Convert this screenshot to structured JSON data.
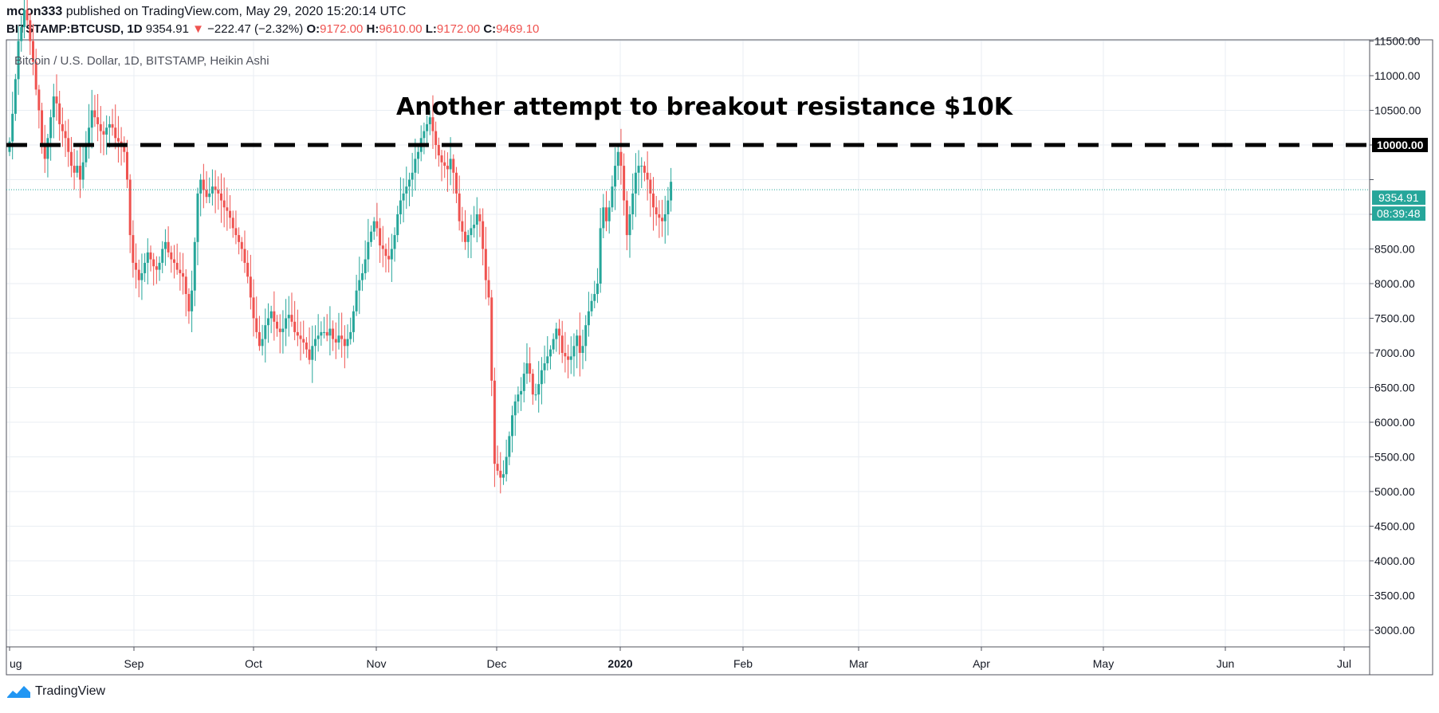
{
  "header": {
    "publisher": "moon333",
    "published_text": "published on TradingView.com, May 29, 2020 15:20:14 UTC",
    "symbol": "BITSTAMP:BTCUSD, 1D",
    "last": "9354.91",
    "change_arrow": "▼",
    "change": "−222.47 (−2.32%)",
    "o_label": "O:",
    "o": "9172.00",
    "h_label": "H:",
    "h": "9610.00",
    "l_label": "L:",
    "l": "9172.00",
    "c_label": "C:",
    "c": "9469.10"
  },
  "legend_text": "Bitcoin / U.S. Dollar, 1D, BITSTAMP, Heikin Ashi",
  "annotation": "Another attempt to breakout resistance $10K",
  "price_label": "9354.91",
  "countdown_label": "08:39:48",
  "resistance_label": "10000.00",
  "footer_brand": "TradingView",
  "colors": {
    "up": "#26a69a",
    "down": "#ef5350",
    "grid": "#e9eef3",
    "text": "#131722"
  },
  "chart_data": {
    "type": "candlestick",
    "style": "Heikin Ashi",
    "title": "Bitcoin / U.S. Dollar, 1D, BITSTAMP, Heikin Ashi",
    "y_ticks": [
      3000,
      3500,
      4000,
      4500,
      5000,
      5500,
      6000,
      6500,
      7000,
      7500,
      8000,
      8500,
      9000,
      9500,
      10000,
      10500,
      11000,
      11500
    ],
    "ylim": [
      2800,
      11850
    ],
    "x_ticks": [
      "ug",
      "Sep",
      "Oct",
      "Nov",
      "Dec",
      "2020",
      "Feb",
      "Mar",
      "Apr",
      "May",
      "Jun",
      "Jul"
    ],
    "horizontal_lines": [
      {
        "value": 10000,
        "style": "dashed"
      }
    ],
    "last_price": 9354.91,
    "candles_close": [
      10050,
      10450,
      10950,
      11500,
      11700,
      11950,
      11800,
      11500,
      11200,
      10800,
      10500,
      10000,
      9800,
      10100,
      10400,
      10700,
      10600,
      10300,
      10200,
      10100,
      9900,
      9700,
      9600,
      9700,
      9500,
      9750,
      10000,
      10250,
      10500,
      10400,
      10300,
      10200,
      10150,
      10250,
      10300,
      10250,
      10100,
      10050,
      10000,
      9900,
      9500,
      8700,
      8300,
      8200,
      8050,
      8150,
      8300,
      8450,
      8350,
      8250,
      8200,
      8300,
      8500,
      8600,
      8450,
      8350,
      8300,
      8200,
      8150,
      8100,
      7850,
      7600,
      7900,
      8600,
      9300,
      9500,
      9350,
      9250,
      9300,
      9400,
      9350,
      9300,
      9200,
      9100,
      9050,
      8950,
      8800,
      8700,
      8600,
      8500,
      8300,
      8100,
      7800,
      7500,
      7300,
      7100,
      7200,
      7400,
      7500,
      7600,
      7450,
      7350,
      7300,
      7350,
      7500,
      7550,
      7450,
      7300,
      7250,
      7200,
      7150,
      7050,
      6900,
      7100,
      7200,
      7250,
      7300,
      7300,
      7250,
      7350,
      7200,
      7150,
      7250,
      7200,
      7100,
      7200,
      7300,
      7600,
      7900,
      8050,
      8150,
      8350,
      8600,
      8750,
      8900,
      8800,
      8550,
      8500,
      8400,
      8350,
      8500,
      8700,
      9000,
      9200,
      9300,
      9400,
      9500,
      9600,
      9800,
      9900,
      10100,
      10200,
      10300,
      10400,
      10200,
      10000,
      9850,
      9750,
      9700,
      9650,
      9800,
      9600,
      9300,
      8900,
      8750,
      8600,
      8700,
      8800,
      8850,
      9000,
      8900,
      8500,
      8050,
      7800,
      6600,
      5400,
      5300,
      5200,
      5250,
      5500,
      5800,
      6100,
      6300,
      6400,
      6450,
      6700,
      6850,
      6700,
      6400,
      6400,
      6550,
      6750,
      6850,
      6950,
      7050,
      7200,
      7350,
      7250,
      7000,
      6950,
      6900,
      6950,
      7100,
      7250,
      7000,
      7100,
      7400,
      7600,
      7750,
      7850,
      8000,
      8800,
      9100,
      8900,
      9100,
      9400,
      9700,
      9900,
      9700,
      9200,
      8700,
      9000,
      9300,
      9600,
      9700,
      9700,
      9600,
      9500,
      9300,
      9100,
      9000,
      8950,
      8900,
      9000,
      9200,
      9469
    ]
  }
}
